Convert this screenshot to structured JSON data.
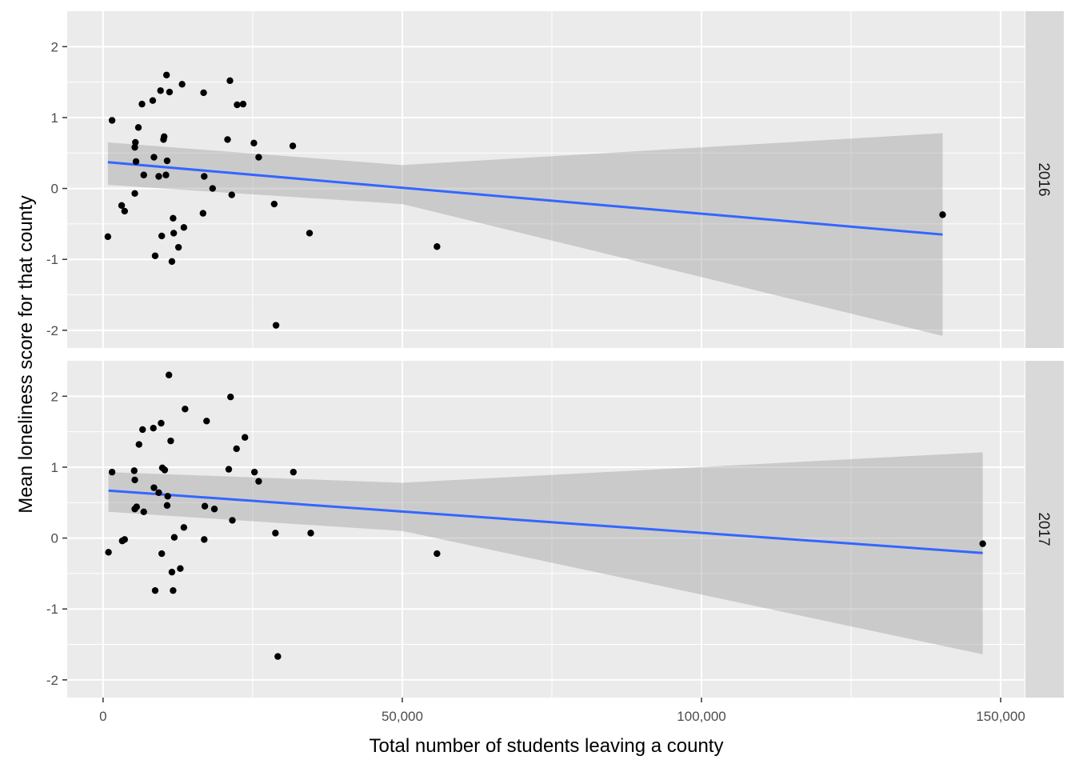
{
  "chart_data": {
    "type": "scatter",
    "xlabel": "Total number of students leaving a county",
    "ylabel": "Mean loneliness score for that county",
    "xlim": [
      -6000,
      154000
    ],
    "ylim": [
      -2.25,
      2.5
    ],
    "x_ticks": [
      0,
      50000,
      100000,
      150000
    ],
    "x_tick_labels": [
      "0",
      "50,000",
      "100,000",
      "150,000"
    ],
    "y_ticks": [
      -2,
      -1,
      0,
      1,
      2
    ],
    "y_tick_labels": [
      "-2",
      "-1",
      "0",
      "1",
      "2"
    ],
    "grid": true,
    "facets": [
      {
        "label": "2016",
        "points": [
          [
            800,
            -0.68
          ],
          [
            1500,
            0.96
          ],
          [
            3100,
            -0.24
          ],
          [
            3600,
            -0.32
          ],
          [
            5300,
            -0.07
          ],
          [
            5300,
            0.58
          ],
          [
            5400,
            0.65
          ],
          [
            5500,
            0.38
          ],
          [
            5900,
            0.86
          ],
          [
            6500,
            1.19
          ],
          [
            6800,
            0.19
          ],
          [
            8300,
            1.24
          ],
          [
            8500,
            0.44
          ],
          [
            8700,
            -0.95
          ],
          [
            9300,
            0.17
          ],
          [
            9600,
            1.38
          ],
          [
            9800,
            -0.67
          ],
          [
            10100,
            0.69
          ],
          [
            10200,
            0.73
          ],
          [
            10500,
            0.19
          ],
          [
            10600,
            1.6
          ],
          [
            10700,
            0.39
          ],
          [
            11100,
            1.36
          ],
          [
            11500,
            -1.03
          ],
          [
            11700,
            -0.42
          ],
          [
            11800,
            -0.63
          ],
          [
            12600,
            -0.83
          ],
          [
            13200,
            1.47
          ],
          [
            13500,
            -0.55
          ],
          [
            16700,
            -0.35
          ],
          [
            16800,
            1.35
          ],
          [
            16900,
            0.17
          ],
          [
            18300,
            0.0
          ],
          [
            20800,
            0.69
          ],
          [
            21200,
            1.52
          ],
          [
            21500,
            -0.09
          ],
          [
            22400,
            1.18
          ],
          [
            23400,
            1.19
          ],
          [
            25200,
            0.64
          ],
          [
            26000,
            0.44
          ],
          [
            28600,
            -0.22
          ],
          [
            28900,
            -1.93
          ],
          [
            31700,
            0.6
          ],
          [
            34500,
            -0.63
          ],
          [
            55800,
            -0.82
          ],
          [
            140300,
            -0.37
          ]
        ],
        "fit": {
          "x": [
            800,
            140300
          ],
          "y": [
            0.37,
            -0.65
          ]
        },
        "ci": {
          "x": [
            800,
            50000,
            140300
          ],
          "lower": [
            0.05,
            -0.22,
            -2.08
          ],
          "upper": [
            0.65,
            0.33,
            0.78
          ]
        }
      },
      {
        "label": "2017",
        "points": [
          [
            900,
            -0.2
          ],
          [
            1500,
            0.93
          ],
          [
            3200,
            -0.04
          ],
          [
            3600,
            -0.02
          ],
          [
            5200,
            0.95
          ],
          [
            5300,
            0.82
          ],
          [
            5300,
            0.41
          ],
          [
            5600,
            0.44
          ],
          [
            6000,
            1.32
          ],
          [
            6600,
            1.53
          ],
          [
            6800,
            0.37
          ],
          [
            8400,
            1.55
          ],
          [
            8500,
            0.71
          ],
          [
            8700,
            -0.74
          ],
          [
            9300,
            0.64
          ],
          [
            9700,
            1.62
          ],
          [
            9800,
            -0.22
          ],
          [
            9900,
            0.99
          ],
          [
            10300,
            0.96
          ],
          [
            10700,
            0.46
          ],
          [
            10800,
            0.59
          ],
          [
            11000,
            2.3
          ],
          [
            11300,
            1.37
          ],
          [
            11500,
            -0.48
          ],
          [
            11700,
            -0.74
          ],
          [
            11900,
            0.01
          ],
          [
            12900,
            -0.43
          ],
          [
            13500,
            0.15
          ],
          [
            13700,
            1.82
          ],
          [
            16900,
            -0.02
          ],
          [
            17000,
            0.45
          ],
          [
            17300,
            1.65
          ],
          [
            18600,
            0.41
          ],
          [
            21000,
            0.97
          ],
          [
            21300,
            1.99
          ],
          [
            21600,
            0.25
          ],
          [
            22300,
            1.26
          ],
          [
            23700,
            1.42
          ],
          [
            25300,
            0.93
          ],
          [
            26000,
            0.8
          ],
          [
            28800,
            0.07
          ],
          [
            29200,
            -1.67
          ],
          [
            31800,
            0.93
          ],
          [
            34700,
            0.07
          ],
          [
            55800,
            -0.22
          ],
          [
            147000,
            -0.08
          ]
        ],
        "fit": {
          "x": [
            900,
            147000
          ],
          "y": [
            0.67,
            -0.21
          ]
        },
        "ci": {
          "x": [
            900,
            50000,
            147000
          ],
          "lower": [
            0.37,
            0.1,
            -1.64
          ],
          "upper": [
            0.93,
            0.78,
            1.21
          ]
        }
      }
    ]
  },
  "colors": {
    "panel_bg": "#ebebeb",
    "grid": "#ffffff",
    "strip_bg": "#d9d9d9",
    "point": "#000000",
    "fit_line": "#3366ff",
    "ci_band": "#999999"
  }
}
